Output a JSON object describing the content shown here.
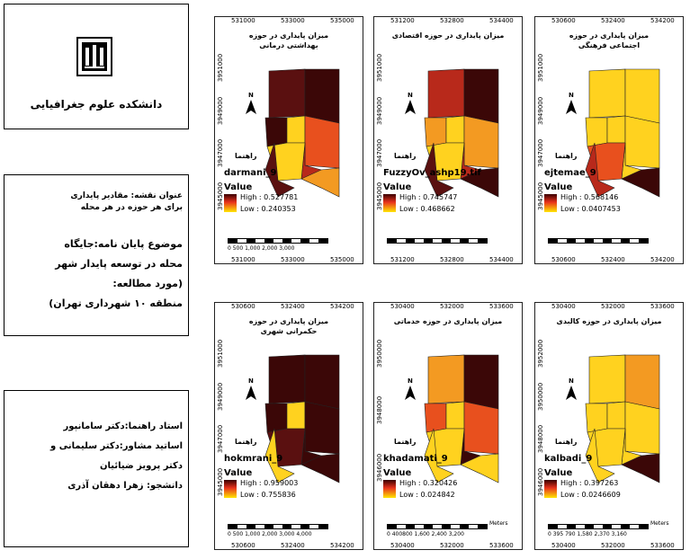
{
  "sidebar": {
    "faculty": "دانشکده علوم جغرافیایی",
    "map_title_1": "عنوان نقشه: مقادیر پایداری",
    "map_title_2": "برای هر حوزه در هر محله",
    "thesis_1": "موضوع پایان نامه:جایگاه",
    "thesis_2": "محله در توسعه پایدار شهر",
    "thesis_3": "(مورد مطالعه:",
    "thesis_4": "منطقه ۱۰ شهرداری تهران)",
    "advisor": "استاد راهنما:دکتر سامانپور",
    "consultant_1": "اساتید مشاور:دکتر سلیمانی و",
    "consultant_2": "دکتر پرویز ضیائیان",
    "student": "دانشجو: زهرا دهقان آذری"
  },
  "common": {
    "value_label": "Value",
    "rahnama": "راهنما",
    "meters": "Meters"
  },
  "maps": [
    {
      "title1": "میزان پایداری در حوزه",
      "title2": "بهداشتی درمانی",
      "layer": "darmani_9",
      "high": "High : 0.527781",
      "low": "Low : 0.240353",
      "xticks": [
        "531000",
        "533000",
        "535000"
      ],
      "xticks_bottom": [
        "531000",
        "533000",
        "535000"
      ],
      "yticks": [
        "3951000",
        "3949000",
        "3947000",
        "3945000"
      ],
      "scale": "0 500 1,000 2,000 3,000"
    },
    {
      "title1": "میزان پایداری در حوزه اقتصادی",
      "title2": "",
      "layer": "FuzzyOv_ashp19.tif",
      "high": "High : 0.745747",
      "low": "Low : 0.468662",
      "xticks": [
        "531200",
        "532800",
        "534400"
      ],
      "xticks_bottom": [
        "531200",
        "532800",
        "534400"
      ],
      "yticks": [
        "3951000",
        "3949000",
        "3947000",
        "3945000"
      ],
      "scale": ""
    },
    {
      "title1": "میزان پایداری در حوزه",
      "title2": "اجتماعی فرهنگی",
      "layer": "ejtemae_9",
      "high": "High : 0.568146",
      "low": "Low : 0.0407453",
      "xticks": [
        "530600",
        "532400",
        "534200"
      ],
      "xticks_bottom": [
        "530600",
        "532400",
        "534200"
      ],
      "yticks": [
        "3951000",
        "3949000",
        "3947000",
        "3945000"
      ],
      "scale": ""
    },
    {
      "title1": "میزان پایداری در حوزه",
      "title2": "حکمرانی شهری",
      "layer": "hokmrani_9",
      "high": "High : 0.959003",
      "low": "Low : 0.755836",
      "xticks": [
        "530600",
        "532400",
        "534200"
      ],
      "xticks_bottom": [
        "530600",
        "532400",
        "534200"
      ],
      "yticks": [
        "3951000",
        "3949000",
        "3947000",
        "3945000"
      ],
      "scale": "0 500 1,000 2,000 3,000 4,000"
    },
    {
      "title1": "میزان پایداری در حوزه خدماتی",
      "title2": "",
      "layer": "khadamati_9",
      "high": "High : 0.320426",
      "low": "Low : 0.024842",
      "xticks": [
        "530400",
        "532000",
        "533600"
      ],
      "xticks_bottom": [
        "530400",
        "532000",
        "533600"
      ],
      "yticks": [
        "3950000",
        "3948000",
        "3946000"
      ],
      "scale": "0 400800 1,600 2,400 3,200"
    },
    {
      "title1": "میزان پایداری در حوزه کالبدی",
      "title2": "",
      "layer": "kalbadi_9",
      "high": "High : 0.397263",
      "low": "Low : 0.0246609",
      "xticks": [
        "530400",
        "532000",
        "533600"
      ],
      "xticks_bottom": [
        "530400",
        "532000",
        "533600"
      ],
      "yticks": [
        "3952000",
        "3950000",
        "3948000",
        "3946000"
      ],
      "scale": "0 395 790 1,580 2,370 3,160"
    }
  ],
  "colors": {
    "c1": "#3b0707",
    "c2": "#5a1010",
    "c3": "#b8291b",
    "c4": "#e8501e",
    "c5": "#f39a22",
    "c6": "#ffd21f",
    "c7": "#fff22a"
  },
  "palettes": [
    [
      "c2",
      "c1",
      "c1",
      "c6",
      "c4",
      "c3",
      "c6",
      "c2",
      "c5"
    ],
    [
      "c3",
      "c1",
      "c5",
      "c6",
      "c5",
      "c3",
      "c6",
      "c2",
      "c1"
    ],
    [
      "c6",
      "c6",
      "c6",
      "c6",
      "c6",
      "c6",
      "c4",
      "c3",
      "c1"
    ],
    [
      "c1",
      "c1",
      "c1",
      "c6",
      "c1",
      "c1",
      "c2",
      "c6",
      "c1"
    ],
    [
      "c5",
      "c1",
      "c4",
      "c6",
      "c4",
      "c1",
      "c6",
      "c6",
      "c6"
    ],
    [
      "c6",
      "c5",
      "c6",
      "c6",
      "c6",
      "c6",
      "c6",
      "c6",
      "c1"
    ]
  ]
}
